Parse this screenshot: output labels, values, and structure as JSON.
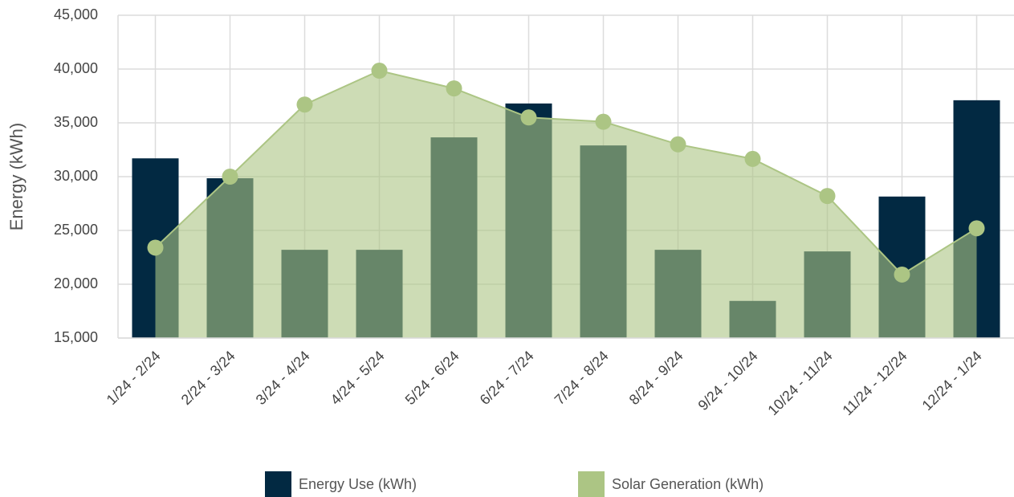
{
  "chart_data": {
    "type": "bar+line",
    "y_label": "Energy (kWh)",
    "categories": [
      "1/24 - 2/24",
      "2/24 - 3/24",
      "3/24 - 4/24",
      "4/24 - 5/24",
      "5/24 - 6/24",
      "6/24 - 7/24",
      "7/24 - 8/24",
      "8/24 - 9/24",
      "9/24 - 10/24",
      "10/24 - 11/24",
      "11/24 - 12/24",
      "12/24 - 1/24"
    ],
    "series": [
      {
        "name": "Energy Use (kWh)",
        "type": "bar",
        "color": "#022942",
        "values": [
          31700,
          29850,
          23200,
          23200,
          33650,
          36800,
          32900,
          23200,
          18450,
          23050,
          28150,
          37100
        ]
      },
      {
        "name": "Solar Generation (kWh)",
        "type": "area",
        "color": "#acc584",
        "values": [
          23400,
          30000,
          36700,
          39850,
          38200,
          35500,
          35100,
          33000,
          31650,
          28200,
          20900,
          25200
        ]
      }
    ],
    "ylim": [
      15000,
      45000
    ],
    "yticks": [
      {
        "value": 15000,
        "label": "15,000"
      },
      {
        "value": 20000,
        "label": "20,000"
      },
      {
        "value": 25000,
        "label": "25,000"
      },
      {
        "value": 30000,
        "label": "30,000"
      },
      {
        "value": 35000,
        "label": "35,000"
      },
      {
        "value": 40000,
        "label": "40,000"
      },
      {
        "value": 45000,
        "label": "45,000"
      }
    ],
    "grid": true
  }
}
